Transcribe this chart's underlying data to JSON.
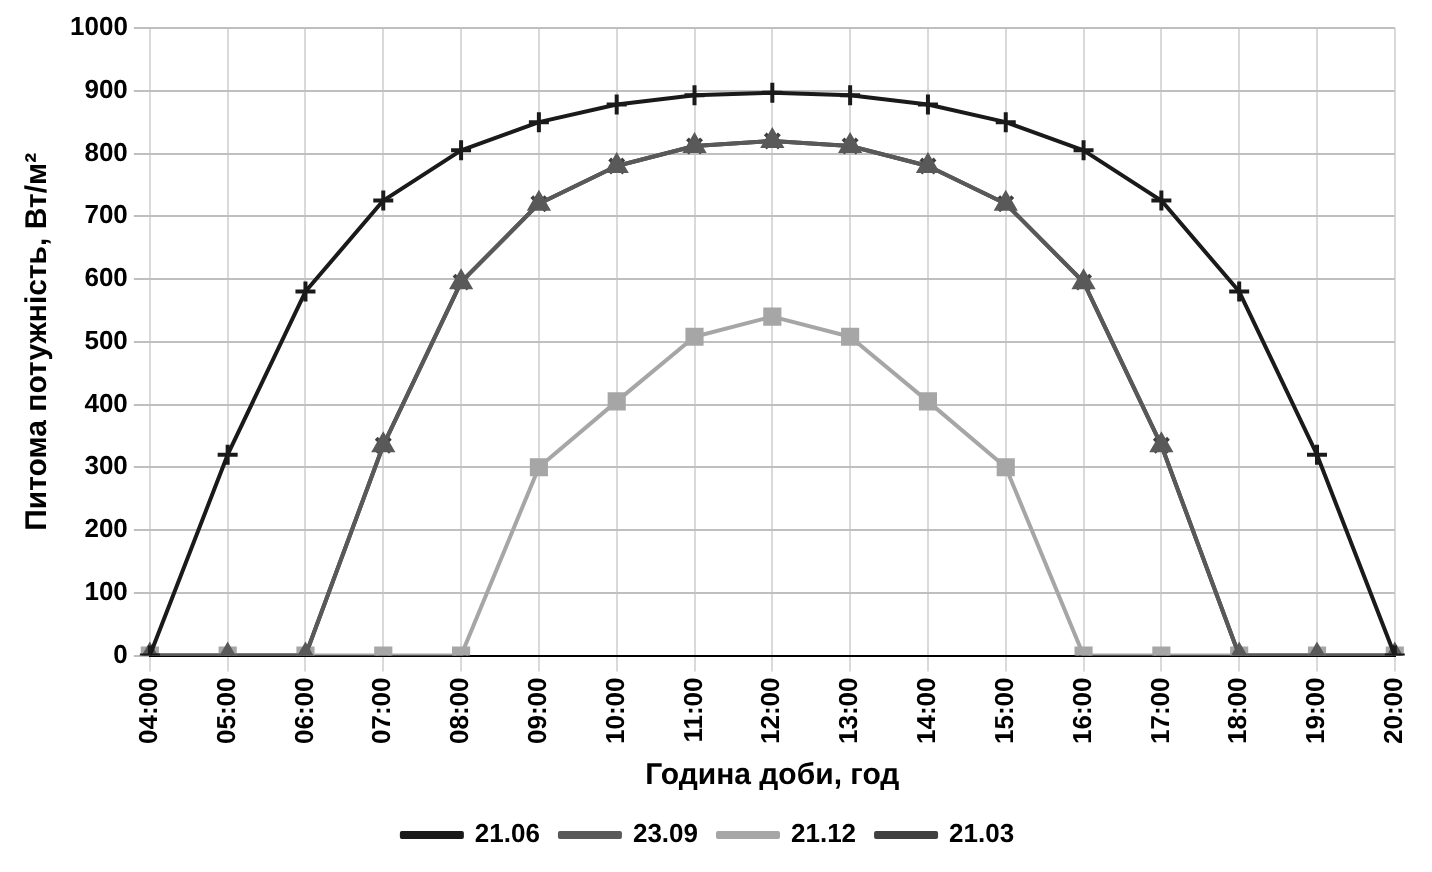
{
  "chart_data": {
    "type": "line",
    "xlabel": "Година доби, год",
    "ylabel": "Питома потужність, Вт/м²",
    "categories": [
      "04:00",
      "05:00",
      "06:00",
      "07:00",
      "08:00",
      "09:00",
      "10:00",
      "11:00",
      "12:00",
      "13:00",
      "14:00",
      "15:00",
      "16:00",
      "17:00",
      "18:00",
      "19:00",
      "20:00"
    ],
    "ylim": [
      0,
      1000
    ],
    "yticks": [
      0,
      100,
      200,
      300,
      400,
      500,
      600,
      700,
      800,
      900,
      1000
    ],
    "grid": true,
    "legend": "bottom",
    "line_style": "solid",
    "series": [
      {
        "name": "21.06",
        "color": "#1a1a1a",
        "marker": "cross",
        "values": [
          0,
          320,
          580,
          725,
          805,
          850,
          878,
          893,
          897,
          893,
          878,
          850,
          805,
          725,
          580,
          320,
          0
        ]
      },
      {
        "name": "23.09",
        "color": "#595959",
        "marker": "triangle",
        "values": [
          0,
          0,
          0,
          335,
          595,
          720,
          780,
          812,
          820,
          812,
          780,
          720,
          595,
          335,
          0,
          0,
          0
        ]
      },
      {
        "name": "21.12",
        "color": "#a6a6a6",
        "marker": "square",
        "values": [
          0,
          0,
          0,
          0,
          0,
          300,
          405,
          508,
          540,
          508,
          405,
          300,
          0,
          0,
          0,
          0,
          0
        ]
      },
      {
        "name": "21.03",
        "color": "#404040",
        "marker": "x",
        "values": [
          0,
          0,
          0,
          335,
          595,
          720,
          780,
          812,
          820,
          812,
          780,
          720,
          595,
          335,
          0,
          0,
          0
        ]
      }
    ]
  }
}
